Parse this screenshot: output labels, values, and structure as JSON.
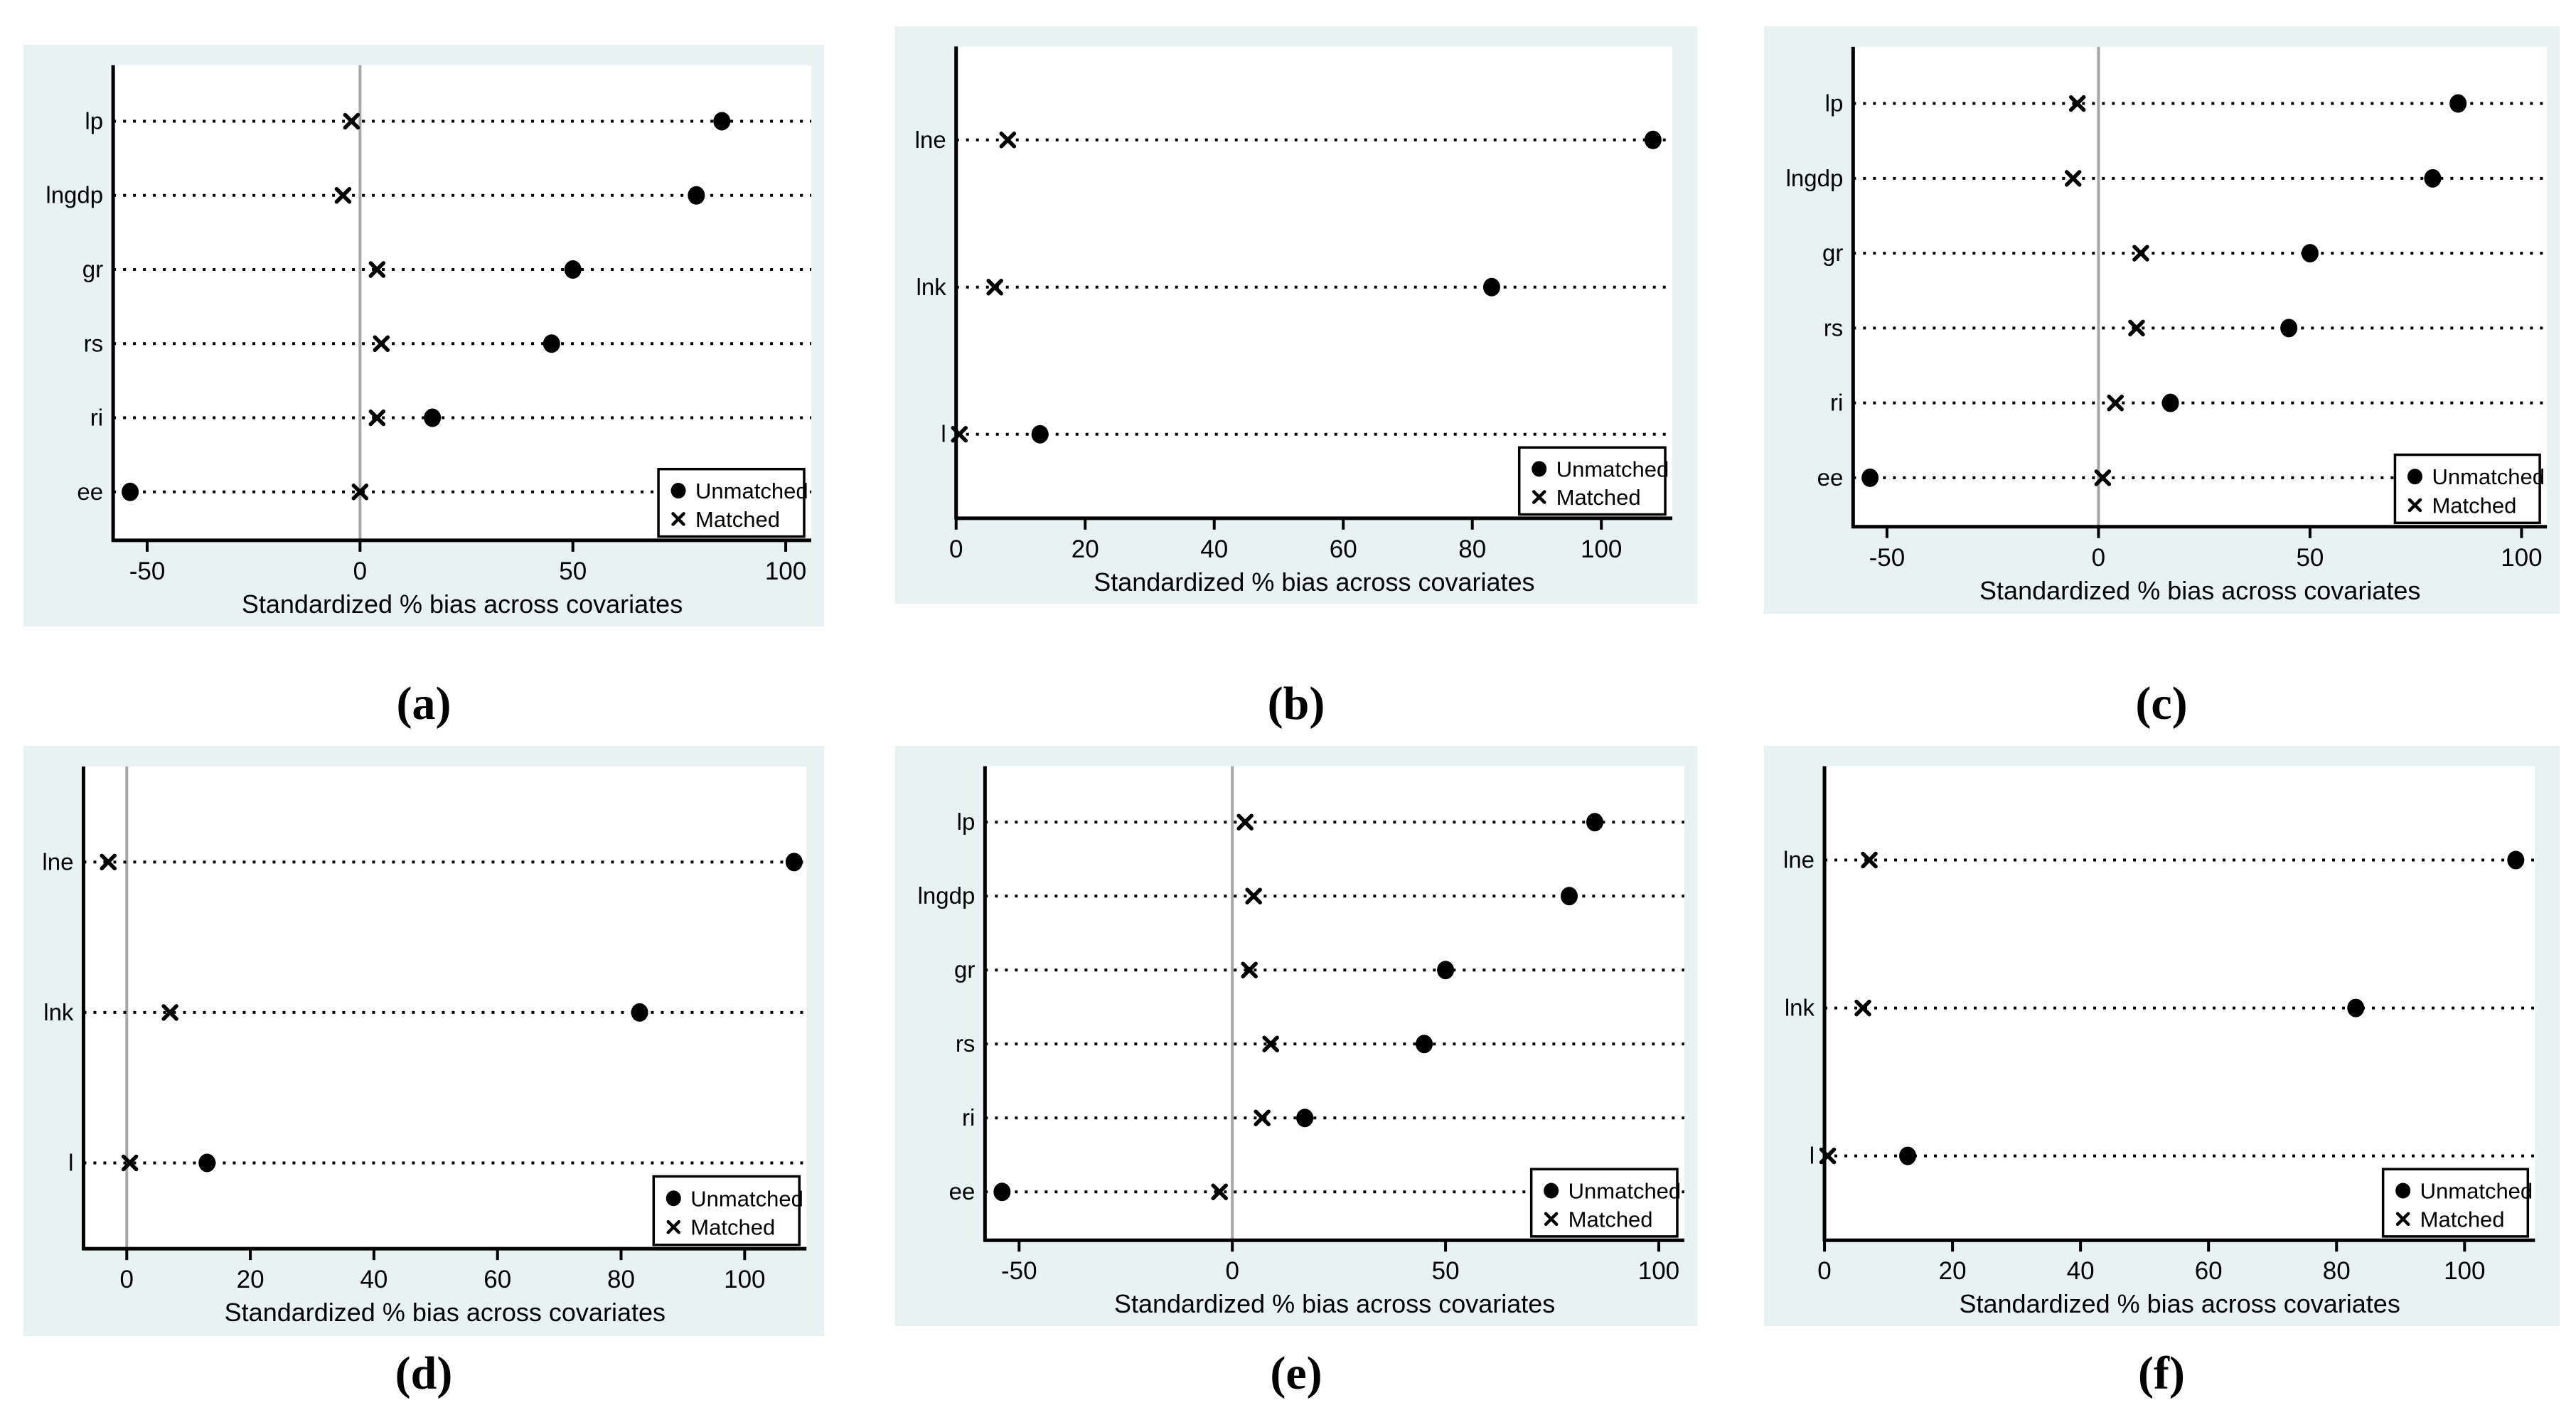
{
  "colors": {
    "page_bg": "#ffffff",
    "panel_bg": "#e8f2f2",
    "plot_bg": "#ffffff",
    "axis": "#000000",
    "text": "#000000",
    "marker": "#000000",
    "zero_line": "#a6a6a6"
  },
  "xlabel": "Standardized % bias across covariates",
  "legend": {
    "unmatched_label": "Unmatched",
    "matched_label": "Matched"
  },
  "chart_data": [
    {
      "id": "a",
      "caption": "(a)",
      "type": "scatter",
      "title": "",
      "xlabel": "Standardized % bias across covariates",
      "categories": [
        "lp",
        "lngdp",
        "gr",
        "rs",
        "ri",
        "ee"
      ],
      "xticks": [
        -50,
        0,
        50,
        100
      ],
      "xlim": [
        -58,
        106
      ],
      "zero_reference_line": true,
      "grid": "dotted-horizontal-rows",
      "legend_position": "bottom-right",
      "series": [
        {
          "name": "Unmatched",
          "marker": "filled-circle",
          "values": [
            85,
            79,
            50,
            45,
            17,
            -54
          ]
        },
        {
          "name": "Matched",
          "marker": "x",
          "values": [
            -2,
            -4,
            4,
            5,
            4,
            0
          ]
        }
      ]
    },
    {
      "id": "b",
      "caption": "(b)",
      "type": "scatter",
      "title": "",
      "xlabel": "Standardized % bias across covariates",
      "categories": [
        "lne",
        "lnk",
        "l"
      ],
      "xticks": [
        0,
        20,
        40,
        60,
        80,
        100
      ],
      "xlim": [
        0,
        111
      ],
      "zero_reference_line": false,
      "grid": "dotted-horizontal-rows",
      "legend_position": "bottom-right",
      "series": [
        {
          "name": "Unmatched",
          "marker": "filled-circle",
          "values": [
            108,
            83,
            13
          ]
        },
        {
          "name": "Matched",
          "marker": "x",
          "values": [
            8,
            6,
            0.5
          ]
        }
      ]
    },
    {
      "id": "c",
      "caption": "(c)",
      "type": "scatter",
      "title": "",
      "xlabel": "Standardized % bias across covariates",
      "categories": [
        "lp",
        "lngdp",
        "gr",
        "rs",
        "ri",
        "ee"
      ],
      "xticks": [
        -50,
        0,
        50,
        100
      ],
      "xlim": [
        -58,
        106
      ],
      "zero_reference_line": true,
      "grid": "dotted-horizontal-rows",
      "legend_position": "bottom-right",
      "series": [
        {
          "name": "Unmatched",
          "marker": "filled-circle",
          "values": [
            85,
            79,
            50,
            45,
            17,
            -54
          ]
        },
        {
          "name": "Matched",
          "marker": "x",
          "values": [
            -5,
            -6,
            10,
            9,
            4,
            1
          ]
        }
      ]
    },
    {
      "id": "d",
      "caption": "(d)",
      "type": "scatter",
      "title": "",
      "xlabel": "Standardized % bias across covariates",
      "categories": [
        "lne",
        "lnk",
        "l"
      ],
      "xticks": [
        0,
        20,
        40,
        60,
        80,
        100
      ],
      "xlim": [
        -7,
        110
      ],
      "zero_reference_line": true,
      "grid": "dotted-horizontal-rows",
      "legend_position": "bottom-right",
      "series": [
        {
          "name": "Unmatched",
          "marker": "filled-circle",
          "values": [
            108,
            83,
            13
          ]
        },
        {
          "name": "Matched",
          "marker": "x",
          "values": [
            -3,
            7,
            0.5
          ]
        }
      ]
    },
    {
      "id": "e",
      "caption": "(e)",
      "type": "scatter",
      "title": "",
      "xlabel": "Standardized % bias across covariates",
      "categories": [
        "lp",
        "lngdp",
        "gr",
        "rs",
        "ri",
        "ee"
      ],
      "xticks": [
        -50,
        0,
        50,
        100
      ],
      "xlim": [
        -58,
        106
      ],
      "zero_reference_line": true,
      "grid": "dotted-horizontal-rows",
      "legend_position": "bottom-right",
      "series": [
        {
          "name": "Unmatched",
          "marker": "filled-circle",
          "values": [
            85,
            79,
            50,
            45,
            17,
            -54
          ]
        },
        {
          "name": "Matched",
          "marker": "x",
          "values": [
            3,
            5,
            4,
            9,
            7,
            -3
          ]
        }
      ]
    },
    {
      "id": "f",
      "caption": "(f)",
      "type": "scatter",
      "title": "",
      "xlabel": "Standardized % bias across covariates",
      "categories": [
        "lne",
        "lnk",
        "l"
      ],
      "xticks": [
        0,
        20,
        40,
        60,
        80,
        100
      ],
      "xlim": [
        0,
        111
      ],
      "zero_reference_line": false,
      "grid": "dotted-horizontal-rows",
      "legend_position": "bottom-right",
      "series": [
        {
          "name": "Unmatched",
          "marker": "filled-circle",
          "values": [
            108,
            83,
            13
          ]
        },
        {
          "name": "Matched",
          "marker": "x",
          "values": [
            7,
            6,
            0.5
          ]
        }
      ]
    }
  ]
}
